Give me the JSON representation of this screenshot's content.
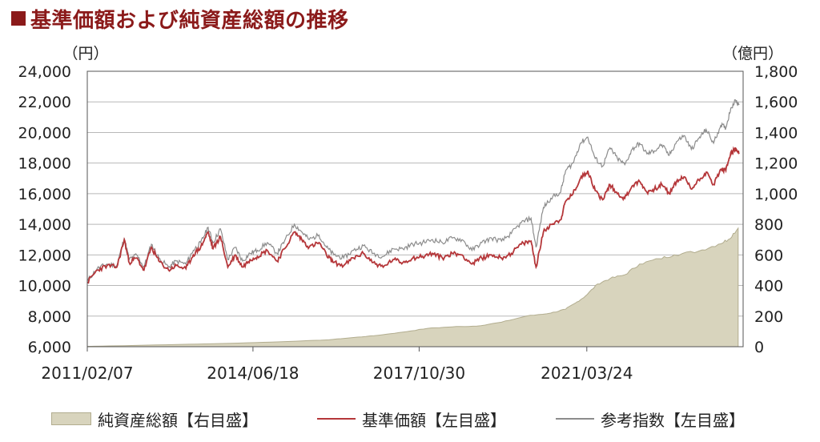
{
  "title": "基準価額および純資産総額の推移",
  "colors": {
    "title": "#8b1a1a",
    "nav": "#b5373a",
    "index": "#8c8c8c",
    "assets_fill": "#d8d4bd",
    "assets_stroke": "#b2ad8f",
    "grid": "#b8b8b8",
    "axis": "#555555"
  },
  "chart_data": {
    "type": "line",
    "left_axis_unit": "（円）",
    "right_axis_unit": "（億円）",
    "y_left": {
      "min": 6000,
      "max": 24000,
      "ticks": [
        "6,000",
        "8,000",
        "10,000",
        "12,000",
        "14,000",
        "16,000",
        "18,000",
        "20,000",
        "22,000",
        "24,000"
      ]
    },
    "y_right": {
      "min": 0,
      "max": 1800,
      "ticks": [
        "0",
        "200",
        "400",
        "600",
        "800",
        "1,000",
        "1,200",
        "1,400",
        "1,600",
        "1,800"
      ]
    },
    "x_range": [
      "2011/02/07",
      "2024/04"
    ],
    "x_tick_labels": [
      "2011/02/07",
      "2014/06/18",
      "2017/10/30",
      "2021/03/24"
    ],
    "x_ticks": [
      2011.1,
      2014.46,
      2017.83,
      2021.23
    ],
    "series": [
      {
        "name": "純資産総額【右目盛】",
        "kind": "area",
        "axis": "right",
        "points": [
          [
            2011.1,
            2
          ],
          [
            2012.0,
            8
          ],
          [
            2013.0,
            15
          ],
          [
            2014.0,
            22
          ],
          [
            2015.0,
            32
          ],
          [
            2016.0,
            45
          ],
          [
            2016.5,
            60
          ],
          [
            2017.0,
            75
          ],
          [
            2017.5,
            95
          ],
          [
            2018.0,
            120
          ],
          [
            2018.5,
            130
          ],
          [
            2019.0,
            135
          ],
          [
            2019.5,
            160
          ],
          [
            2020.0,
            200
          ],
          [
            2020.5,
            220
          ],
          [
            2020.8,
            245
          ],
          [
            2021.0,
            285
          ],
          [
            2021.2,
            330
          ],
          [
            2021.45,
            410
          ],
          [
            2021.7,
            445
          ],
          [
            2022.0,
            470
          ],
          [
            2022.3,
            540
          ],
          [
            2022.7,
            575
          ],
          [
            2023.0,
            600
          ],
          [
            2023.5,
            625
          ],
          [
            2023.9,
            670
          ],
          [
            2024.1,
            700
          ],
          [
            2024.3,
            775
          ]
        ]
      },
      {
        "name": "基準価額【左目盛】",
        "kind": "line",
        "axis": "left",
        "points": [
          [
            2011.1,
            10200
          ],
          [
            2011.3,
            11000
          ],
          [
            2011.5,
            11300
          ],
          [
            2011.7,
            11200
          ],
          [
            2011.85,
            13000
          ],
          [
            2011.95,
            11500
          ],
          [
            2012.1,
            11800
          ],
          [
            2012.25,
            11000
          ],
          [
            2012.4,
            12500
          ],
          [
            2012.55,
            11600
          ],
          [
            2012.75,
            11000
          ],
          [
            2012.9,
            11300
          ],
          [
            2013.1,
            11100
          ],
          [
            2013.25,
            12000
          ],
          [
            2013.4,
            12500
          ],
          [
            2013.55,
            13500
          ],
          [
            2013.65,
            12400
          ],
          [
            2013.8,
            13200
          ],
          [
            2013.95,
            11200
          ],
          [
            2014.1,
            12000
          ],
          [
            2014.25,
            11200
          ],
          [
            2014.4,
            11700
          ],
          [
            2014.55,
            11900
          ],
          [
            2014.75,
            12300
          ],
          [
            2014.95,
            11600
          ],
          [
            2015.1,
            12400
          ],
          [
            2015.3,
            13500
          ],
          [
            2015.45,
            13000
          ],
          [
            2015.6,
            12500
          ],
          [
            2015.8,
            12800
          ],
          [
            2015.95,
            12000
          ],
          [
            2016.1,
            11500
          ],
          [
            2016.3,
            11300
          ],
          [
            2016.5,
            11800
          ],
          [
            2016.7,
            12100
          ],
          [
            2016.9,
            11500
          ],
          [
            2017.1,
            11200
          ],
          [
            2017.3,
            11700
          ],
          [
            2017.5,
            11500
          ],
          [
            2017.7,
            11800
          ],
          [
            2017.9,
            11900
          ],
          [
            2018.1,
            12100
          ],
          [
            2018.3,
            11800
          ],
          [
            2018.5,
            12100
          ],
          [
            2018.7,
            12000
          ],
          [
            2018.9,
            11400
          ],
          [
            2019.1,
            11800
          ],
          [
            2019.3,
            12000
          ],
          [
            2019.5,
            11800
          ],
          [
            2019.7,
            12100
          ],
          [
            2019.9,
            12700
          ],
          [
            2020.1,
            12900
          ],
          [
            2020.2,
            11200
          ],
          [
            2020.35,
            13500
          ],
          [
            2020.5,
            14000
          ],
          [
            2020.7,
            14300
          ],
          [
            2020.8,
            15500
          ],
          [
            2020.95,
            16000
          ],
          [
            2021.1,
            17000
          ],
          [
            2021.25,
            17500
          ],
          [
            2021.4,
            16200
          ],
          [
            2021.55,
            15600
          ],
          [
            2021.7,
            16600
          ],
          [
            2021.85,
            16000
          ],
          [
            2022.0,
            15700
          ],
          [
            2022.15,
            16500
          ],
          [
            2022.3,
            16800
          ],
          [
            2022.45,
            16100
          ],
          [
            2022.6,
            16300
          ],
          [
            2022.75,
            16600
          ],
          [
            2022.9,
            16000
          ],
          [
            2023.05,
            16800
          ],
          [
            2023.2,
            17100
          ],
          [
            2023.35,
            16300
          ],
          [
            2023.5,
            16900
          ],
          [
            2023.65,
            17400
          ],
          [
            2023.8,
            16600
          ],
          [
            2023.95,
            17600
          ],
          [
            2024.05,
            17500
          ],
          [
            2024.15,
            18700
          ],
          [
            2024.25,
            18900
          ],
          [
            2024.32,
            18600
          ]
        ]
      },
      {
        "name": "参考指数【左目盛】",
        "kind": "line",
        "axis": "left",
        "points": [
          [
            2011.1,
            10300
          ],
          [
            2011.3,
            11100
          ],
          [
            2011.5,
            11400
          ],
          [
            2011.7,
            11300
          ],
          [
            2011.85,
            13100
          ],
          [
            2011.95,
            11700
          ],
          [
            2012.1,
            12000
          ],
          [
            2012.25,
            11200
          ],
          [
            2012.4,
            12700
          ],
          [
            2012.55,
            11800
          ],
          [
            2012.75,
            11200
          ],
          [
            2012.9,
            11600
          ],
          [
            2013.1,
            11400
          ],
          [
            2013.25,
            12300
          ],
          [
            2013.4,
            12800
          ],
          [
            2013.55,
            13800
          ],
          [
            2013.65,
            12800
          ],
          [
            2013.8,
            13700
          ],
          [
            2013.95,
            11700
          ],
          [
            2014.1,
            12500
          ],
          [
            2014.25,
            11600
          ],
          [
            2014.4,
            12100
          ],
          [
            2014.55,
            12300
          ],
          [
            2014.75,
            12800
          ],
          [
            2014.95,
            12100
          ],
          [
            2015.1,
            12900
          ],
          [
            2015.3,
            14000
          ],
          [
            2015.45,
            13500
          ],
          [
            2015.6,
            13000
          ],
          [
            2015.8,
            13300
          ],
          [
            2015.95,
            12500
          ],
          [
            2016.1,
            12000
          ],
          [
            2016.3,
            11800
          ],
          [
            2016.5,
            12300
          ],
          [
            2016.7,
            12600
          ],
          [
            2016.9,
            12100
          ],
          [
            2017.1,
            11900
          ],
          [
            2017.3,
            12400
          ],
          [
            2017.5,
            12400
          ],
          [
            2017.7,
            12700
          ],
          [
            2017.9,
            12800
          ],
          [
            2018.1,
            13000
          ],
          [
            2018.3,
            12800
          ],
          [
            2018.5,
            13100
          ],
          [
            2018.7,
            13000
          ],
          [
            2018.9,
            12300
          ],
          [
            2019.1,
            12800
          ],
          [
            2019.3,
            13100
          ],
          [
            2019.5,
            12900
          ],
          [
            2019.7,
            13400
          ],
          [
            2019.9,
            14100
          ],
          [
            2020.1,
            14400
          ],
          [
            2020.2,
            12500
          ],
          [
            2020.35,
            15100
          ],
          [
            2020.5,
            15700
          ],
          [
            2020.7,
            16100
          ],
          [
            2020.8,
            17500
          ],
          [
            2020.95,
            18000
          ],
          [
            2021.1,
            19300
          ],
          [
            2021.25,
            19700
          ],
          [
            2021.4,
            18300
          ],
          [
            2021.55,
            17800
          ],
          [
            2021.7,
            19000
          ],
          [
            2021.85,
            18300
          ],
          [
            2022.0,
            17900
          ],
          [
            2022.15,
            18900
          ],
          [
            2022.3,
            19300
          ],
          [
            2022.45,
            18600
          ],
          [
            2022.6,
            18800
          ],
          [
            2022.75,
            19200
          ],
          [
            2022.9,
            18500
          ],
          [
            2023.05,
            19400
          ],
          [
            2023.2,
            19800
          ],
          [
            2023.35,
            18900
          ],
          [
            2023.5,
            19600
          ],
          [
            2023.65,
            20200
          ],
          [
            2023.8,
            19300
          ],
          [
            2023.95,
            20500
          ],
          [
            2024.05,
            20300
          ],
          [
            2024.15,
            21600
          ],
          [
            2024.25,
            22100
          ],
          [
            2024.32,
            21800
          ]
        ]
      }
    ]
  }
}
